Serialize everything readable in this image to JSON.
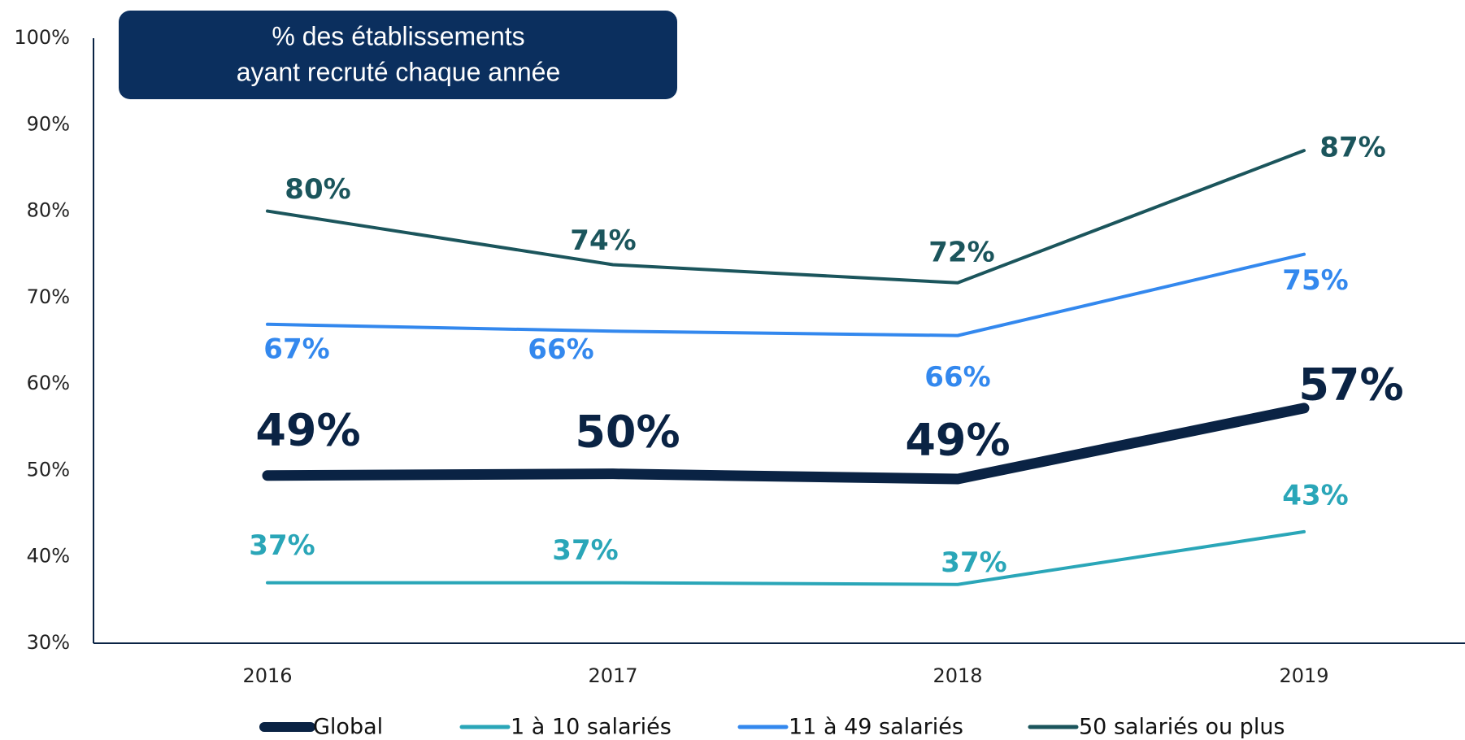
{
  "chart_data": {
    "type": "line",
    "title": [
      "% des établissements",
      "ayant recruté chaque année"
    ],
    "categories": [
      "2016",
      "2017",
      "2018",
      "2019"
    ],
    "ylim": [
      30,
      100
    ],
    "yticks": [
      {
        "value": 30,
        "label": "30%"
      },
      {
        "value": 40,
        "label": "40%"
      },
      {
        "value": 50,
        "label": "50%"
      },
      {
        "value": 60,
        "label": "60%"
      },
      {
        "value": 70,
        "label": "70%"
      },
      {
        "value": 80,
        "label": "80%"
      },
      {
        "value": 90,
        "label": "90%"
      },
      {
        "value": 100,
        "label": "100%"
      }
    ],
    "grid": false,
    "legend": "bottom",
    "series": [
      {
        "name": "Global",
        "color": "#0a2344",
        "values": [
          49.4,
          49.6,
          49.0,
          57.2
        ],
        "value_labels": [
          "49%",
          "50%",
          "49%",
          "57%"
        ]
      },
      {
        "name": "1 à 10 salariés",
        "color": "#2aa6b8",
        "values": [
          37.0,
          37.0,
          36.8,
          42.9
        ],
        "value_labels": [
          "37%",
          "37%",
          "37%",
          "43%"
        ]
      },
      {
        "name": "11 à 49 salariés",
        "color": "#3388ee",
        "values": [
          66.9,
          66.1,
          65.6,
          75.0
        ],
        "value_labels": [
          "67%",
          "66%",
          "66%",
          "75%"
        ]
      },
      {
        "name": "50 salariés ou plus",
        "color": "#1b555c",
        "values": [
          80.0,
          73.8,
          71.7,
          87.0
        ],
        "value_labels": [
          "80%",
          "74%",
          "72%",
          "87%"
        ]
      }
    ]
  }
}
